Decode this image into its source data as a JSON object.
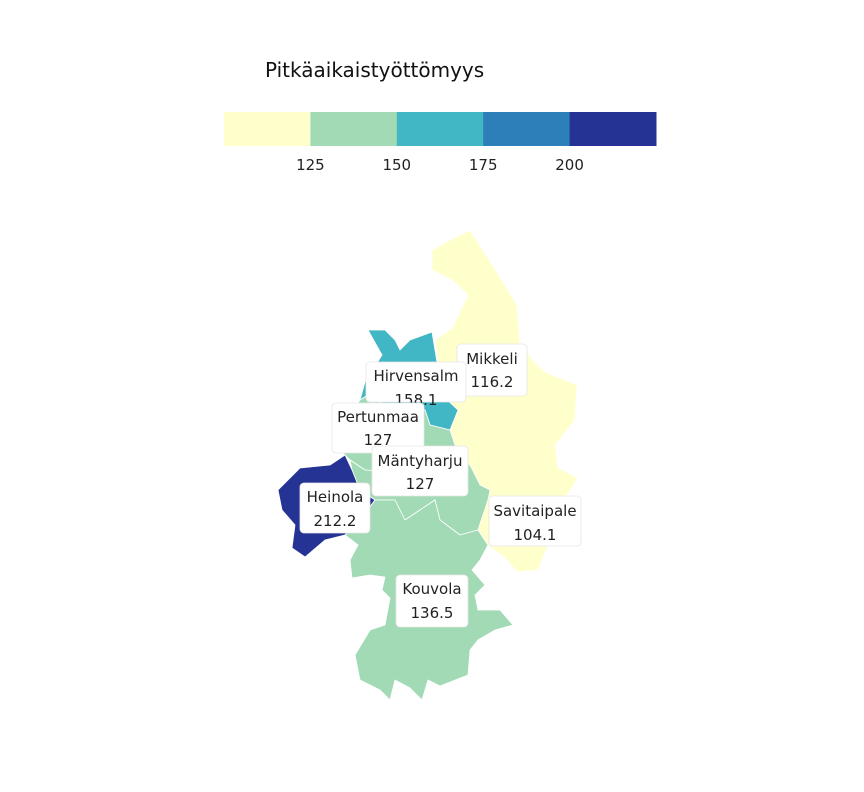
{
  "legend": {
    "title": "Pitkäaikaistyöttömyys",
    "bins": [
      {
        "color": "#ffffcc"
      },
      {
        "color": "#a1dab4"
      },
      {
        "color": "#41b6c4"
      },
      {
        "color": "#2c7fb8"
      },
      {
        "color": "#253494"
      }
    ],
    "breaks": [
      "125",
      "150",
      "175",
      "200"
    ]
  },
  "regions": [
    {
      "id": "mikkeli",
      "name": "Mikkeli",
      "value": "116.2",
      "fill": "#ffffcc"
    },
    {
      "id": "savitaipale",
      "name": "Savitaipale",
      "value": "104.1",
      "fill": "#ffffcc"
    },
    {
      "id": "hirvensalmi",
      "name": "Hirvensalm",
      "value": "158.1",
      "fill": "#41b6c4"
    },
    {
      "id": "pertunmaa",
      "name": "Pertunmaa",
      "value": "127",
      "fill": "#a1dab4"
    },
    {
      "id": "mantyharju",
      "name": "Mäntyharju",
      "value": "127",
      "fill": "#a1dab4"
    },
    {
      "id": "heinola",
      "name": "Heinola",
      "value": "212.2",
      "fill": "#253494"
    },
    {
      "id": "kouvola",
      "name": "Kouvola",
      "value": "136.5",
      "fill": "#a1dab4"
    }
  ]
}
